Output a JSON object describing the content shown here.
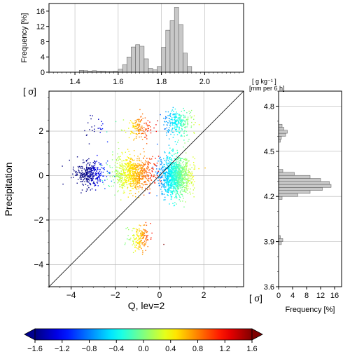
{
  "chart_data": [
    {
      "id": "top-histogram",
      "type": "bar",
      "ylabel": "Frequency [%]",
      "xlim": [
        1.28,
        2.18
      ],
      "ylim": [
        0,
        18
      ],
      "xticks": [
        "1.4",
        "1.6",
        "1.8",
        "2.0"
      ],
      "xtick_values": [
        1.4,
        1.6,
        1.8,
        2.0
      ],
      "yticks": [
        "0",
        "4",
        "8",
        "12",
        "16"
      ],
      "ytick_values": [
        0,
        4,
        8,
        12,
        16
      ],
      "bin_width": 0.02,
      "bin_starts": [
        1.42,
        1.44,
        1.46,
        1.48,
        1.5,
        1.52,
        1.54,
        1.56,
        1.58,
        1.6,
        1.62,
        1.64,
        1.66,
        1.68,
        1.7,
        1.72,
        1.74,
        1.76,
        1.78,
        1.8,
        1.82,
        1.84,
        1.86,
        1.88,
        1.9,
        1.92
      ],
      "values": [
        0.5,
        0.4,
        0.3,
        0.4,
        0.3,
        0.3,
        0.2,
        0.2,
        0.3,
        0.8,
        2.0,
        4.0,
        6.6,
        7.2,
        6.8,
        3.5,
        1.0,
        0.6,
        1.5,
        6.5,
        11.0,
        13.5,
        17.0,
        12.5,
        5.0,
        1.5
      ]
    },
    {
      "id": "right-histogram",
      "type": "bar",
      "orientation": "horizontal",
      "axis_unit_label": "[ g kg⁻¹ ]",
      "axis_unit_label2": "[mm per 6 h]",
      "ylim": [
        3.6,
        4.9
      ],
      "xlim": [
        0,
        18
      ],
      "yticks": [
        "3.6",
        "3.9",
        "4.2",
        "4.5",
        "4.8"
      ],
      "ytick_values": [
        3.6,
        3.9,
        4.2,
        4.5,
        4.8
      ],
      "xticks": [
        "0",
        "4",
        "8",
        "12",
        "16"
      ],
      "xtick_values": [
        0,
        4,
        8,
        12,
        16
      ],
      "xlabel": "Frequency [%]",
      "bin_height": 0.02,
      "bin_starts": [
        4.18,
        4.2,
        4.22,
        4.24,
        4.26,
        4.28,
        4.3,
        4.32,
        4.34,
        4.36,
        4.56,
        4.58,
        4.6,
        4.62,
        4.64,
        4.66,
        3.88,
        3.9,
        3.92
      ],
      "values": [
        1.0,
        5.5,
        9.0,
        12.5,
        15.0,
        14.5,
        12.0,
        9.0,
        4.5,
        1.2,
        0.5,
        0.8,
        2.0,
        2.5,
        1.5,
        1.0,
        0.8,
        1.2,
        0.5
      ]
    },
    {
      "id": "scatter",
      "type": "scatter",
      "xlabel": "Q, lev=2",
      "ylabel": "Precipitation",
      "axis_sigma_label": "[ σ]",
      "xlim": [
        -5,
        3.8
      ],
      "ylim": [
        -5,
        3.8
      ],
      "xticks": [
        "−4",
        "−2",
        "0",
        "2"
      ],
      "xtick_values": [
        -4,
        -2,
        0,
        2
      ],
      "yticks": [
        "−4",
        "−2",
        "0",
        "2"
      ],
      "ytick_values": [
        -4,
        -2,
        0,
        2
      ],
      "grid": true,
      "diagonal_line": "y = x",
      "clusters": [
        {
          "cx": -3.2,
          "cy": 0.1,
          "sx": 0.35,
          "sy": 0.3,
          "n": 320,
          "color_value": -1.55
        },
        {
          "cx": -3.0,
          "cy": 2.2,
          "sx": 0.35,
          "sy": 0.25,
          "n": 25,
          "color_value": -1.5
        },
        {
          "cx": -1.0,
          "cy": 2.2,
          "sx": 0.35,
          "sy": 0.25,
          "n": 140,
          "color_value": 0.7
        },
        {
          "cx": 0.8,
          "cy": 2.4,
          "sx": 0.35,
          "sy": 0.3,
          "n": 260,
          "color_value": -0.35
        },
        {
          "cx": -1.2,
          "cy": 0.1,
          "sx": 0.45,
          "sy": 0.4,
          "n": 750,
          "color_value": 0.55
        },
        {
          "cx": 0.7,
          "cy": 0.0,
          "sx": 0.35,
          "sy": 0.45,
          "n": 1100,
          "color_value": -0.25
        },
        {
          "cx": -0.9,
          "cy": -2.8,
          "sx": 0.25,
          "sy": 0.3,
          "n": 170,
          "color_value": 0.6
        }
      ]
    },
    {
      "id": "colorbar",
      "type": "colorbar",
      "range": [
        -1.6,
        1.6
      ],
      "ticks": [
        "−1.6",
        "−1.2",
        "−0.8",
        "−0.4",
        "0.0",
        "0.4",
        "0.8",
        "1.2",
        "1.6"
      ],
      "tick_values": [
        -1.6,
        -1.2,
        -0.8,
        -0.4,
        0.0,
        0.4,
        0.8,
        1.2,
        1.6
      ],
      "colormap": "jet"
    }
  ],
  "colors": {
    "bar_fill": "#c8c8c8",
    "bar_stroke": "#555555",
    "grid": "#b4b4b4",
    "axis": "#000000"
  }
}
